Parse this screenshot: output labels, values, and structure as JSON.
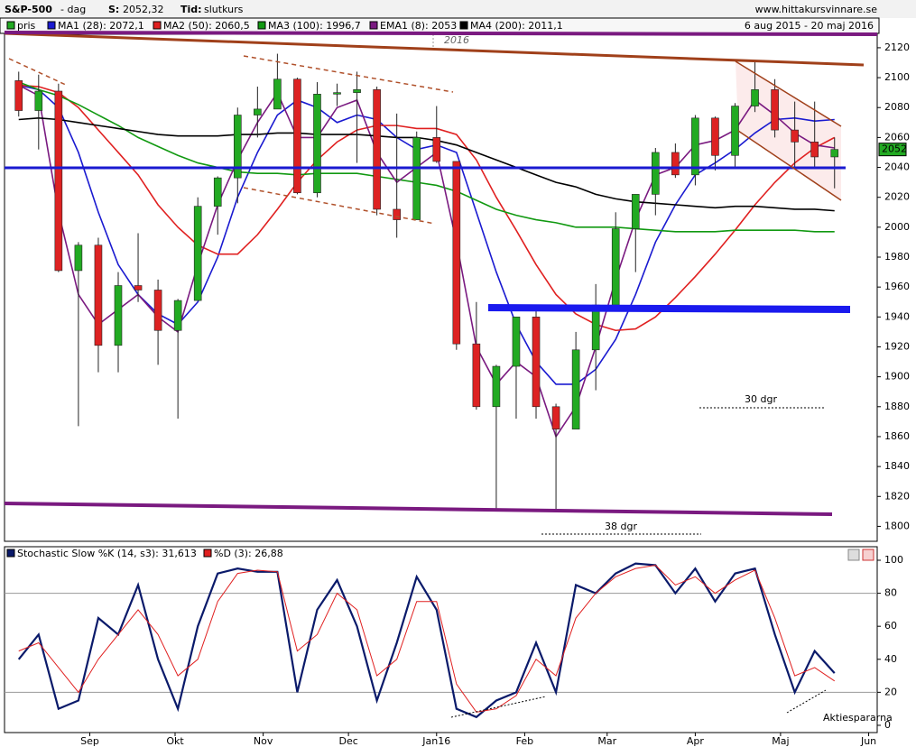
{
  "header": {
    "symbol": "S&P-500",
    "period": "- dag",
    "s_label": "S:",
    "s_value": "2052,32",
    "tid_label": "Tid:",
    "tid_value": "slutkurs",
    "site": "www.hittakursvinnare.se",
    "date_range": "6 aug 2015 - 20 maj 2016",
    "footer": "Aktiespararna"
  },
  "chart_data": [
    {
      "type": "candlestick",
      "price_name": "pris",
      "price_color": "#22aa22",
      "x": [
        6,
        13,
        20,
        27,
        34,
        41,
        48,
        55,
        62,
        69,
        76,
        83,
        90,
        97,
        104,
        111,
        118,
        125,
        132,
        139,
        146,
        153,
        160,
        167,
        174,
        181,
        188,
        195,
        202,
        209,
        216,
        223,
        230,
        237,
        244,
        251,
        258,
        265,
        272,
        279,
        286,
        293
      ],
      "open": [
        2098,
        2078,
        2091,
        1971,
        1988,
        1921,
        1961,
        1958,
        1931,
        1951,
        2014,
        2033,
        2075,
        2079,
        2099,
        2023,
        2089,
        2090,
        2092,
        2012,
        2005,
        2060,
        2044,
        1922,
        1880,
        1907,
        1940,
        1880,
        1865,
        1918,
        1948,
        1999,
        2022,
        2050,
        2035,
        2073,
        2048,
        2081,
        2092,
        2065,
        2057,
        2047
      ],
      "high": [
        2104,
        2102,
        2096,
        1990,
        1993,
        1970,
        1996,
        1965,
        1952,
        2020,
        2034,
        2080,
        2094,
        2116,
        2100,
        2097,
        2096,
        2104,
        2094,
        2076,
        2064,
        2081,
        2044,
        1950,
        1908,
        1940,
        1947,
        1882,
        1930,
        1962,
        2010,
        2022,
        2053,
        2056,
        2075,
        2074,
        2083,
        2111,
        2099,
        2084,
        2084,
        2060
      ],
      "low": [
        2074,
        2052,
        1970,
        1867,
        1903,
        1903,
        1950,
        1908,
        1872,
        1951,
        1995,
        2016,
        2060,
        2080,
        2022,
        2020,
        2081,
        2043,
        2008,
        1993,
        2005,
        2043,
        1918,
        1878,
        1812,
        1872,
        1872,
        1810,
        1865,
        1891,
        1948,
        1970,
        2008,
        2033,
        2028,
        2038,
        2040,
        2077,
        2060,
        2039,
        2039,
        2026
      ],
      "close": [
        2078,
        2091,
        1971,
        1988,
        1921,
        1961,
        1958,
        1931,
        1951,
        2014,
        2033,
        2075,
        2079,
        2099,
        2023,
        2089,
        2090,
        2092,
        2012,
        2005,
        2060,
        2044,
        1922,
        1880,
        1907,
        1940,
        1880,
        1865,
        1918,
        1948,
        1999,
        2022,
        2050,
        2035,
        2073,
        2048,
        2081,
        2092,
        2065,
        2057,
        2047,
        2052
      ],
      "last_price": 2052,
      "series": [
        {
          "name": "MA1 (28): 2072,1",
          "color": "#1a1ad0",
          "values": [
            2095,
            2092,
            2080,
            2050,
            2010,
            1975,
            1955,
            1942,
            1935,
            1950,
            1980,
            2020,
            2050,
            2075,
            2085,
            2080,
            2070,
            2075,
            2072,
            2060,
            2052,
            2055,
            2050,
            2010,
            1970,
            1935,
            1910,
            1895,
            1895,
            1905,
            1925,
            1955,
            1990,
            2015,
            2035,
            2043,
            2052,
            2063,
            2072,
            2073,
            2071,
            2072
          ]
        },
        {
          "name": "MA2 (50): 2060,5",
          "color": "#e02020",
          "values": [
            2095,
            2094,
            2090,
            2080,
            2065,
            2050,
            2035,
            2015,
            2000,
            1988,
            1982,
            1982,
            1995,
            2012,
            2030,
            2045,
            2057,
            2065,
            2068,
            2068,
            2066,
            2066,
            2062,
            2045,
            2020,
            1998,
            1975,
            1955,
            1942,
            1935,
            1931,
            1932,
            1940,
            1953,
            1967,
            1982,
            1998,
            2015,
            2030,
            2043,
            2053,
            2060
          ]
        },
        {
          "name": "MA3 (100): 1996,7",
          "color": "#119911",
          "values": [
            2097,
            2092,
            2088,
            2082,
            2075,
            2068,
            2060,
            2054,
            2048,
            2043,
            2040,
            2037,
            2036,
            2036,
            2035,
            2036,
            2036,
            2036,
            2034,
            2032,
            2030,
            2028,
            2024,
            2018,
            2012,
            2008,
            2005,
            2003,
            2000,
            2000,
            2000,
            1999,
            1998,
            1997,
            1997,
            1997,
            1998,
            1998,
            1998,
            1998,
            1997,
            1997
          ]
        },
        {
          "name": "EMA1 (8): 2053",
          "color": "#7a1a80",
          "values": [
            2095,
            2088,
            2010,
            1955,
            1935,
            1945,
            1955,
            1940,
            1930,
            1975,
            2015,
            2045,
            2070,
            2090,
            2060,
            2060,
            2080,
            2085,
            2050,
            2030,
            2040,
            2050,
            1990,
            1920,
            1895,
            1910,
            1900,
            1860,
            1880,
            1920,
            1965,
            2005,
            2035,
            2040,
            2055,
            2058,
            2065,
            2085,
            2075,
            2063,
            2055,
            2053
          ]
        },
        {
          "name": "MA4 (200): 2011,1",
          "color": "#000000",
          "values": [
            2072,
            2073,
            2072,
            2070,
            2068,
            2066,
            2064,
            2062,
            2061,
            2061,
            2061,
            2062,
            2062,
            2063,
            2063,
            2062,
            2062,
            2062,
            2061,
            2060,
            2060,
            2058,
            2055,
            2050,
            2045,
            2040,
            2035,
            2030,
            2027,
            2022,
            2019,
            2017,
            2016,
            2015,
            2014,
            2013,
            2014,
            2014,
            2013,
            2012,
            2012,
            2011
          ]
        }
      ],
      "annotations": [
        "2016",
        "30 dgr",
        "38 dgr"
      ],
      "xlim": [
        1,
        308
      ],
      "ylim": [
        1790,
        2129
      ],
      "yticks": [
        1800,
        1820,
        1840,
        1860,
        1880,
        1900,
        1920,
        1940,
        1960,
        1980,
        2000,
        2020,
        2040,
        2060,
        2080,
        2100,
        2120
      ]
    },
    {
      "type": "line",
      "x": [
        6,
        13,
        20,
        27,
        34,
        41,
        48,
        55,
        62,
        69,
        76,
        83,
        90,
        97,
        104,
        111,
        118,
        125,
        132,
        139,
        146,
        153,
        160,
        167,
        174,
        181,
        188,
        195,
        202,
        209,
        216,
        223,
        230,
        237,
        244,
        251,
        258,
        265,
        272,
        279,
        286,
        293
      ],
      "series": [
        {
          "name": "Stochastic Slow %K (14, s3): 31,613",
          "color": "#0a1a6a",
          "values": [
            40,
            55,
            10,
            15,
            65,
            55,
            85,
            40,
            10,
            60,
            92,
            95,
            93,
            93,
            20,
            70,
            88,
            60,
            15,
            50,
            90,
            70,
            10,
            5,
            15,
            20,
            50,
            20,
            85,
            80,
            92,
            98,
            97,
            80,
            95,
            75,
            92,
            95,
            55,
            20,
            45,
            31.613
          ]
        },
        {
          "name": "%D (3): 26,88",
          "color": "#e02020",
          "values": [
            45,
            50,
            35,
            20,
            40,
            55,
            70,
            55,
            30,
            40,
            75,
            92,
            94,
            93,
            45,
            55,
            80,
            70,
            30,
            40,
            75,
            75,
            25,
            8,
            10,
            18,
            40,
            30,
            65,
            80,
            90,
            95,
            97,
            85,
            90,
            80,
            88,
            94,
            65,
            30,
            35,
            26.88
          ]
        }
      ],
      "xlim": [
        1,
        308
      ],
      "ylim": [
        -4.4,
        108.2
      ],
      "yticks": [
        0,
        20,
        40,
        60,
        80,
        100
      ],
      "grid": [
        20,
        80
      ],
      "xticks": [
        {
          "value": 31,
          "label": "Sep"
        },
        {
          "value": 61,
          "label": "Okt"
        },
        {
          "value": 92,
          "label": "Nov"
        },
        {
          "value": 122,
          "label": "Dec"
        },
        {
          "value": 153,
          "label": "Jan16"
        },
        {
          "value": 184,
          "label": "Feb"
        },
        {
          "value": 213,
          "label": "Mar"
        },
        {
          "value": 244,
          "label": "Apr"
        },
        {
          "value": 274,
          "label": "Maj"
        },
        {
          "value": 305,
          "label": "Jun"
        }
      ]
    }
  ]
}
